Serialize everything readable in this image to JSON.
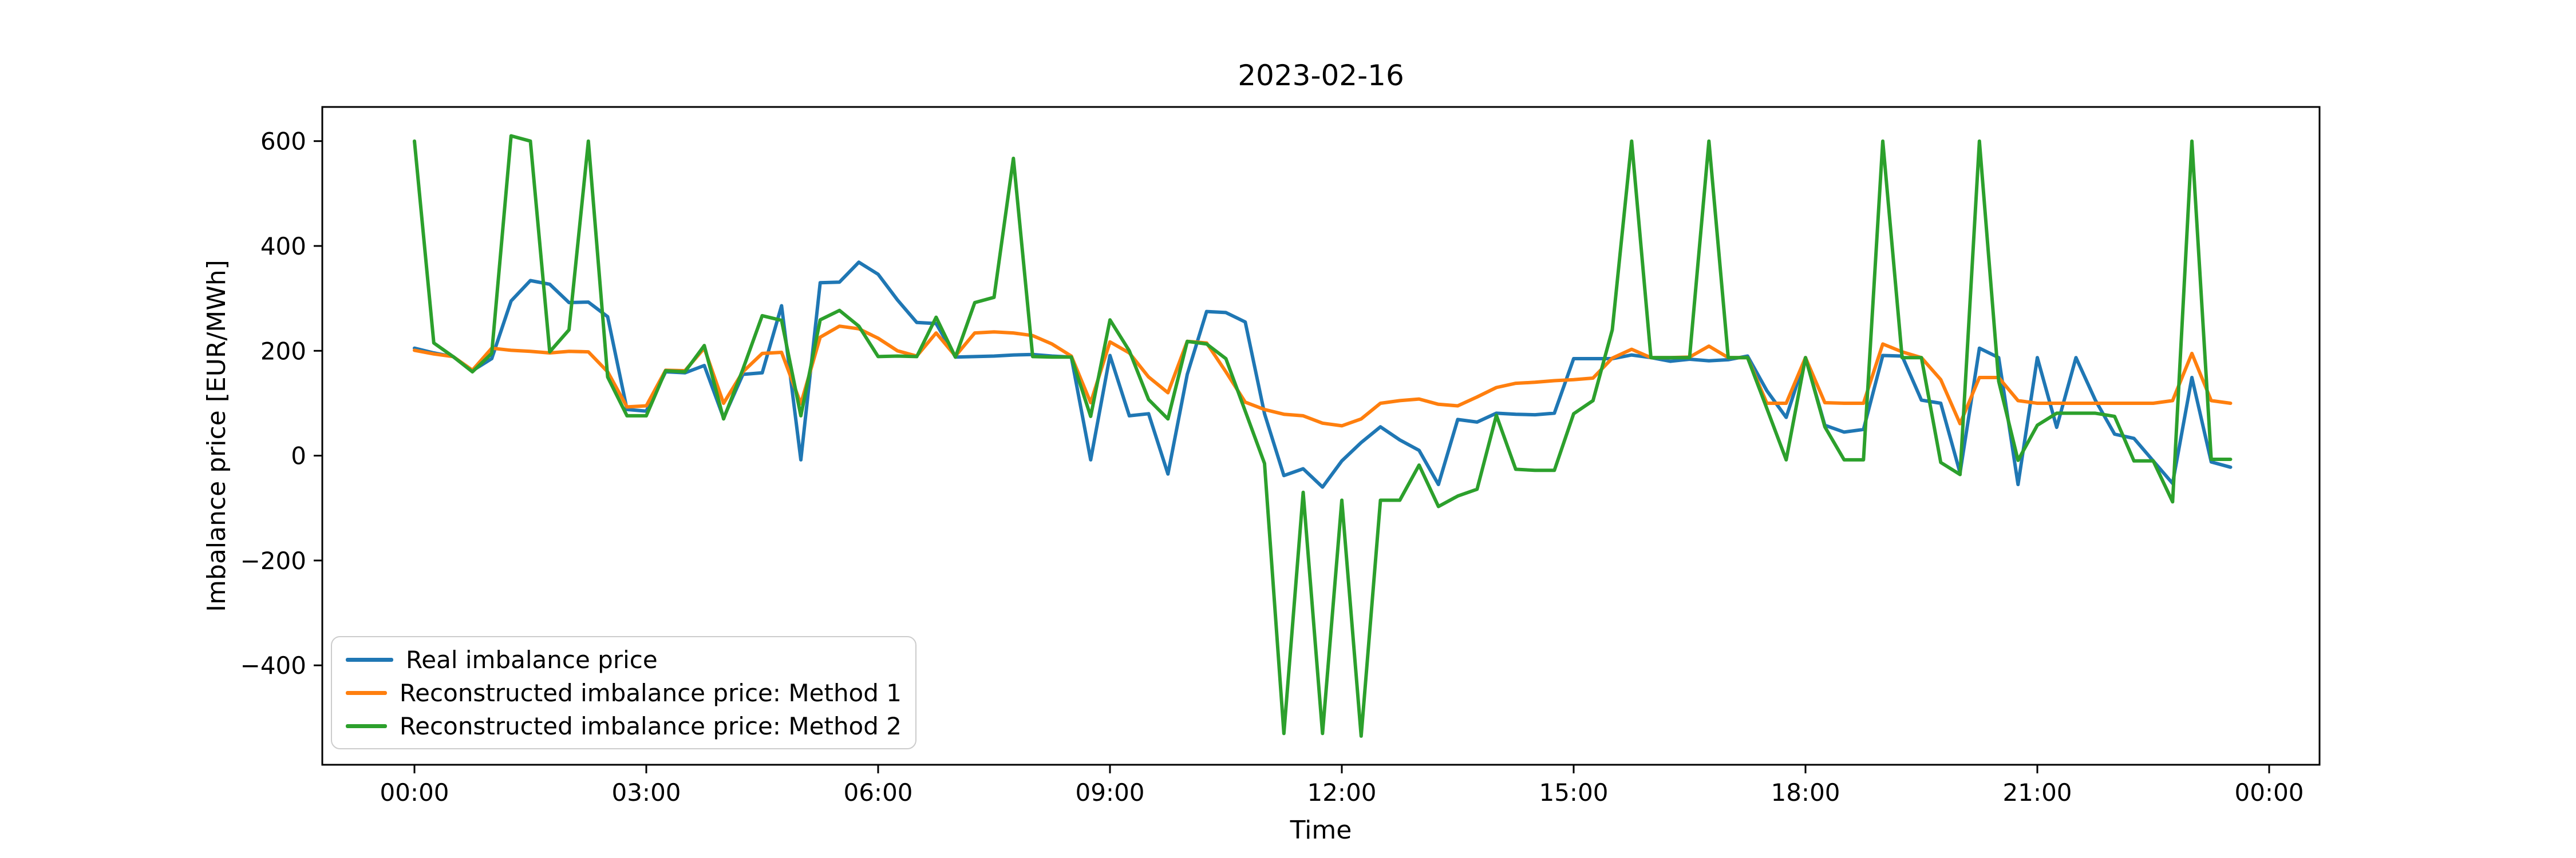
{
  "chart_data": {
    "type": "line",
    "title": "2023-02-16",
    "xlabel": "Time",
    "ylabel": "Imbalance price [EUR/MWh]",
    "x_tick_labels": [
      "00:00",
      "03:00",
      "06:00",
      "09:00",
      "12:00",
      "15:00",
      "18:00",
      "21:00",
      "00:00"
    ],
    "y_tick_labels": [
      "600",
      "400",
      "200",
      "0",
      "−200",
      "−400"
    ],
    "y_ticks": [
      600,
      400,
      200,
      0,
      -200,
      -400
    ],
    "ylim": [
      -592,
      667
    ],
    "x_start": "00:00",
    "x_step_minutes": 15,
    "n_points": 95,
    "grid": false,
    "legend_position": "lower left",
    "series": [
      {
        "name": "Real imbalance price",
        "color": "#1f77b4",
        "values": [
          205,
          196,
          189,
          162,
          185,
          295,
          334,
          327,
          292,
          293,
          265,
          88,
          85,
          160,
          158,
          172,
          72,
          155,
          158,
          286,
          -8,
          330,
          331,
          369,
          346,
          297,
          254,
          252,
          188,
          189,
          190,
          192,
          193,
          190,
          188,
          -8,
          191,
          76,
          80,
          -35,
          155,
          275,
          273,
          255,
          80,
          -38,
          -25,
          -60,
          -10,
          25,
          55,
          30,
          10,
          -55,
          69,
          64,
          81,
          79,
          78,
          81,
          185,
          185,
          185,
          192,
          187,
          180,
          184,
          181,
          183,
          190,
          124,
          73,
          187,
          58,
          45,
          50,
          191,
          190,
          106,
          100,
          -33,
          205,
          187,
          -55,
          187,
          54,
          187,
          106,
          41,
          33,
          -10,
          -53,
          149,
          -12,
          -22
        ]
      },
      {
        "name": "Reconstructed imbalance price: Method 1",
        "color": "#ff7f0e",
        "values": [
          201,
          194,
          189,
          163,
          205,
          201,
          199,
          196,
          199,
          198,
          160,
          93,
          95,
          163,
          162,
          205,
          100,
          160,
          195,
          197,
          99,
          226,
          247,
          242,
          224,
          200,
          190,
          234,
          190,
          234,
          236,
          234,
          229,
          213,
          190,
          101,
          217,
          196,
          150,
          120,
          218,
          215,
          160,
          102,
          88,
          79,
          76,
          62,
          57,
          70,
          100,
          105,
          108,
          98,
          95,
          112,
          130,
          138,
          140,
          143,
          145,
          148,
          186,
          203,
          187,
          187,
          188,
          209,
          187,
          187,
          100,
          100,
          187,
          101,
          100,
          100,
          213,
          198,
          187,
          145,
          61,
          149,
          149,
          105,
          100,
          100,
          100,
          100,
          100,
          100,
          100,
          105,
          195,
          105,
          100
        ]
      },
      {
        "name": "Reconstructed imbalance price: Method 2",
        "color": "#2ca02c",
        "values": [
          600,
          215,
          189,
          160,
          195,
          610,
          600,
          198,
          240,
          600,
          150,
          76,
          76,
          162,
          160,
          210,
          70,
          165,
          267,
          258,
          76,
          259,
          277,
          247,
          189,
          190,
          189,
          264,
          188,
          292,
          302,
          567,
          189,
          188,
          188,
          75,
          259,
          200,
          107,
          70,
          218,
          213,
          185,
          85,
          -15,
          -530,
          -70,
          -530,
          -85,
          -535,
          -85,
          -85,
          -18,
          -97,
          -77,
          -64,
          77,
          -26,
          -28,
          -28,
          80,
          105,
          240,
          600,
          187,
          187,
          187,
          600,
          187,
          187,
          90,
          -8,
          187,
          55,
          -8,
          -8,
          600,
          187,
          187,
          -13,
          -36,
          600,
          142,
          -9,
          58,
          81,
          81,
          81,
          75,
          -10,
          -10,
          -88,
          600,
          -7,
          -7
        ]
      }
    ]
  }
}
